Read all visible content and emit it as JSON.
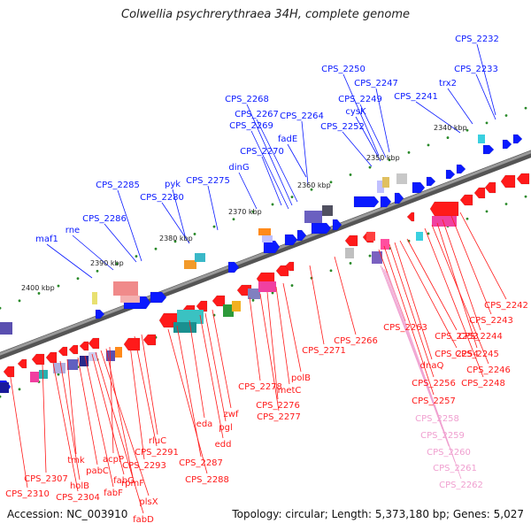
{
  "title": "Colwellia psychrerythraea 34H, complete genome",
  "footer": {
    "accession": "Accession: NC_003910",
    "summary": "Topology: circular; Length: 5,373,180 bp; Genes: 5,027"
  },
  "colors": {
    "forward": "#0a1aff",
    "reverse": "#ff1a1a",
    "pseudo": "#f0a0d0",
    "backbone": "#7a7a7a",
    "tick": "#2a8a2a"
  },
  "scale_ticks": [
    "2400 kbp",
    "2390 kbp",
    "2380 kbp",
    "2370 kbp",
    "2360 kbp",
    "2350 kbp",
    "2340 kbp"
  ],
  "top_labels": [
    "CPS_2232",
    "CPS_2233",
    "trx2",
    "CPS_2241",
    "CPS_2250",
    "CPS_2247",
    "CPS_2249",
    "cysK",
    "CPS_2252",
    "CPS_2268",
    "CPS_2267",
    "CPS_2269",
    "CPS_2264",
    "fadE",
    "CPS_2270",
    "dinG",
    "CPS_2275",
    "pyk",
    "CPS_2285",
    "CPS_2280",
    "CPS_2286",
    "rne",
    "maf1"
  ],
  "bottom_labels": [
    "CPS_2242",
    "CPS_2243",
    "CPS_2244",
    "CPS_2245",
    "CPS_2246",
    "CPS_2248",
    "CPS_2253",
    "CPS_2254",
    "dnaQ",
    "CPS_2256",
    "CPS_2257",
    "CPS_2263",
    "CPS_2266",
    "CPS_2271",
    "polB",
    "metC",
    "CPS_2276",
    "CPS_2277",
    "CPS_2278",
    "zwf",
    "pgl",
    "edd",
    "eda",
    "CPS_2287",
    "CPS_2288",
    "rluC",
    "CPS_2291",
    "CPS_2293",
    "acpP",
    "rpmF",
    "plsX",
    "fabD",
    "fabG",
    "fabF",
    "pabC",
    "tmk",
    "holB",
    "CPS_2304",
    "CPS_2307",
    "CPS_2310"
  ],
  "pseudo_labels": [
    "CPS_2258",
    "CPS_2259",
    "CPS_2260",
    "CPS_2261",
    "CPS_2262"
  ]
}
